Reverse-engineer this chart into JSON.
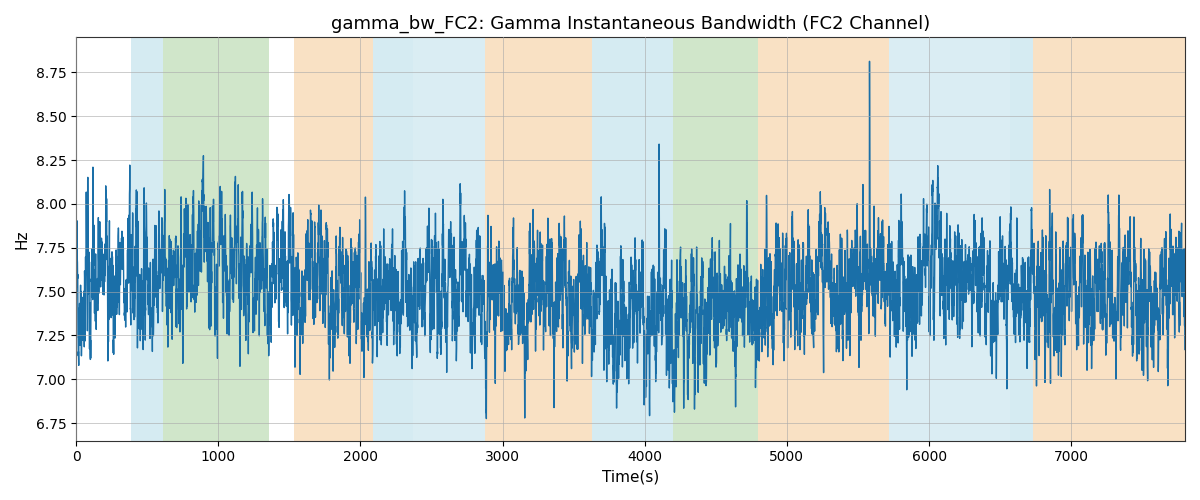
{
  "title": "gamma_bw_FC2: Gamma Instantaneous Bandwidth (FC2 Channel)",
  "xlabel": "Time(s)",
  "ylabel": "Hz",
  "ylim": [
    6.65,
    8.95
  ],
  "xlim": [
    0,
    7800
  ],
  "line_color": "#1a6fa8",
  "line_width": 1.0,
  "title_fontsize": 13,
  "label_fontsize": 11,
  "tick_fontsize": 10,
  "seed": 42,
  "n_points": 7800,
  "yticks": [
    6.75,
    7.0,
    7.25,
    7.5,
    7.75,
    8.0,
    8.25,
    8.5,
    8.75
  ],
  "xticks": [
    0,
    1000,
    2000,
    3000,
    4000,
    5000,
    6000,
    7000
  ],
  "bg_regions": [
    [
      390,
      610,
      "#add8e6",
      0.5
    ],
    [
      610,
      1360,
      "#98c98a",
      0.45
    ],
    [
      1530,
      2090,
      "#f5c48a",
      0.5
    ],
    [
      2090,
      2370,
      "#add8e6",
      0.5
    ],
    [
      2370,
      2880,
      "#add8e6",
      0.45
    ],
    [
      2880,
      3630,
      "#f5c48a",
      0.5
    ],
    [
      3630,
      3910,
      "#add8e6",
      0.5
    ],
    [
      3910,
      4080,
      "#add8e6",
      0.5
    ],
    [
      4080,
      4200,
      "#add8e6",
      0.5
    ],
    [
      4200,
      4800,
      "#98c98a",
      0.45
    ],
    [
      4800,
      5720,
      "#f5c48a",
      0.5
    ],
    [
      5720,
      6570,
      "#add8e6",
      0.45
    ],
    [
      6570,
      6730,
      "#add8e6",
      0.5
    ],
    [
      6730,
      7800,
      "#f5c48a",
      0.5
    ]
  ]
}
